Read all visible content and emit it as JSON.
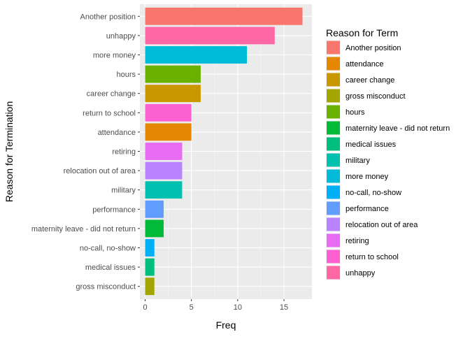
{
  "chart_data": {
    "type": "bar",
    "orientation": "horizontal",
    "xlabel": "Freq",
    "ylabel": "Reason for Termination",
    "xlim": [
      0,
      17.5
    ],
    "xticks": [
      0,
      5,
      10,
      15
    ],
    "grid": true,
    "legend_position": "right",
    "legend_title": "Reason for Term",
    "categories": [
      "Another position",
      "unhappy",
      "more money",
      "hours",
      "career change",
      "return to school",
      "attendance",
      "retiring",
      "relocation out of area",
      "military",
      "performance",
      "maternity leave - did not return",
      "no-call, no-show",
      "medical issues",
      "gross misconduct"
    ],
    "values": [
      17,
      14,
      11,
      6,
      6,
      5,
      5,
      4,
      4,
      4,
      2,
      2,
      1,
      1,
      1
    ],
    "legend": [
      {
        "label": "Another position",
        "color": "#F8766D"
      },
      {
        "label": "attendance",
        "color": "#E58700"
      },
      {
        "label": "career change",
        "color": "#C99800"
      },
      {
        "label": "gross misconduct",
        "color": "#A3A500"
      },
      {
        "label": "hours",
        "color": "#6BB100"
      },
      {
        "label": "maternity leave - did not return",
        "color": "#00BA38"
      },
      {
        "label": "medical issues",
        "color": "#00BF7D"
      },
      {
        "label": "military",
        "color": "#00C0AF"
      },
      {
        "label": "more money",
        "color": "#00BCD8"
      },
      {
        "label": "no-call, no-show",
        "color": "#00B0F6"
      },
      {
        "label": "performance",
        "color": "#619CFF"
      },
      {
        "label": "relocation out of area",
        "color": "#B983FF"
      },
      {
        "label": "retiring",
        "color": "#E76BF3"
      },
      {
        "label": "return to school",
        "color": "#FD61D1"
      },
      {
        "label": "unhappy",
        "color": "#FF67A4"
      }
    ]
  }
}
